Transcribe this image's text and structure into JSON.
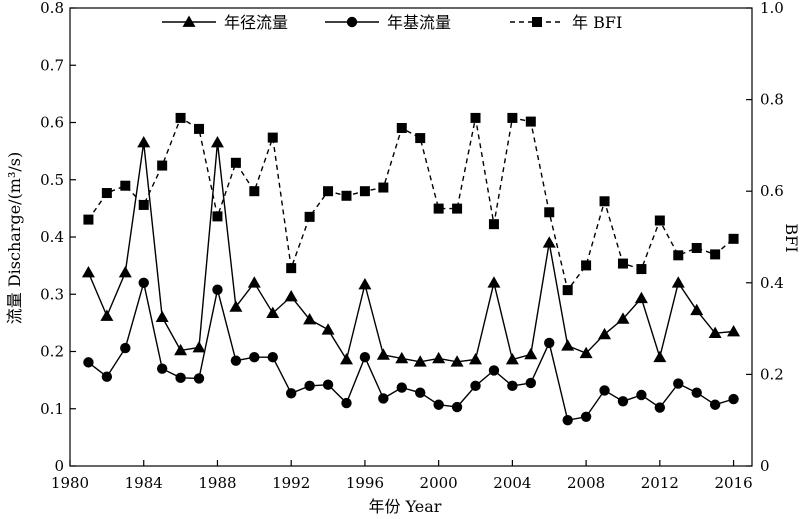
{
  "chart_data": {
    "type": "line",
    "xlabel": "年份 Year",
    "ylabel_left": "流量 Discharge/(m³/s)",
    "ylabel_right": "BFI",
    "xlim": [
      1980,
      2017
    ],
    "ylim_left": [
      0,
      0.8
    ],
    "ylim_right": [
      0,
      1.0
    ],
    "x_ticks": [
      1980,
      1984,
      1988,
      1992,
      1996,
      2000,
      2004,
      2008,
      2012,
      2016
    ],
    "y_ticks_left": [
      "0",
      "0.1",
      "0.2",
      "0.3",
      "0.4",
      "0.5",
      "0.6",
      "0.7",
      "0.8"
    ],
    "y_ticks_right": [
      "0",
      "0.2",
      "0.4",
      "0.6",
      "0.8",
      "1.0"
    ],
    "grid": false,
    "legend_position": "top",
    "x": [
      1981,
      1982,
      1983,
      1984,
      1985,
      1986,
      1987,
      1988,
      1989,
      1990,
      1991,
      1992,
      1993,
      1994,
      1995,
      1996,
      1997,
      1998,
      1999,
      2000,
      2001,
      2002,
      2003,
      2004,
      2005,
      2006,
      2007,
      2008,
      2009,
      2010,
      2011,
      2012,
      2013,
      2014,
      2015,
      2016
    ],
    "series": [
      {
        "name": "年径流量",
        "axis": "left",
        "marker": "triangle",
        "dash": "solid",
        "values": [
          0.338,
          0.262,
          0.338,
          0.565,
          0.26,
          0.202,
          0.207,
          0.565,
          0.278,
          0.32,
          0.267,
          0.296,
          0.256,
          0.238,
          0.186,
          0.317,
          0.194,
          0.188,
          0.182,
          0.188,
          0.182,
          0.186,
          0.32,
          0.186,
          0.195,
          0.39,
          0.21,
          0.197,
          0.23,
          0.257,
          0.293,
          0.19,
          0.32,
          0.272,
          0.232,
          0.235
        ]
      },
      {
        "name": "年基流量",
        "axis": "left",
        "marker": "circle",
        "dash": "solid",
        "values": [
          0.181,
          0.156,
          0.206,
          0.32,
          0.17,
          0.154,
          0.153,
          0.308,
          0.184,
          0.19,
          0.19,
          0.127,
          0.14,
          0.142,
          0.11,
          0.19,
          0.118,
          0.137,
          0.128,
          0.107,
          0.103,
          0.14,
          0.167,
          0.14,
          0.145,
          0.215,
          0.08,
          0.086,
          0.132,
          0.113,
          0.124,
          0.102,
          0.144,
          0.128,
          0.107,
          0.117
        ]
      },
      {
        "name": "年 BFI",
        "axis": "right",
        "marker": "square",
        "dash": "dashed",
        "values": [
          0.538,
          0.596,
          0.612,
          0.57,
          0.656,
          0.76,
          0.736,
          0.545,
          0.662,
          0.6,
          0.717,
          0.432,
          0.544,
          0.6,
          0.59,
          0.6,
          0.608,
          0.738,
          0.716,
          0.562,
          0.562,
          0.76,
          0.528,
          0.76,
          0.752,
          0.554,
          0.384,
          0.438,
          0.578,
          0.442,
          0.43,
          0.536,
          0.46,
          0.476,
          0.462,
          0.496
        ]
      }
    ]
  }
}
